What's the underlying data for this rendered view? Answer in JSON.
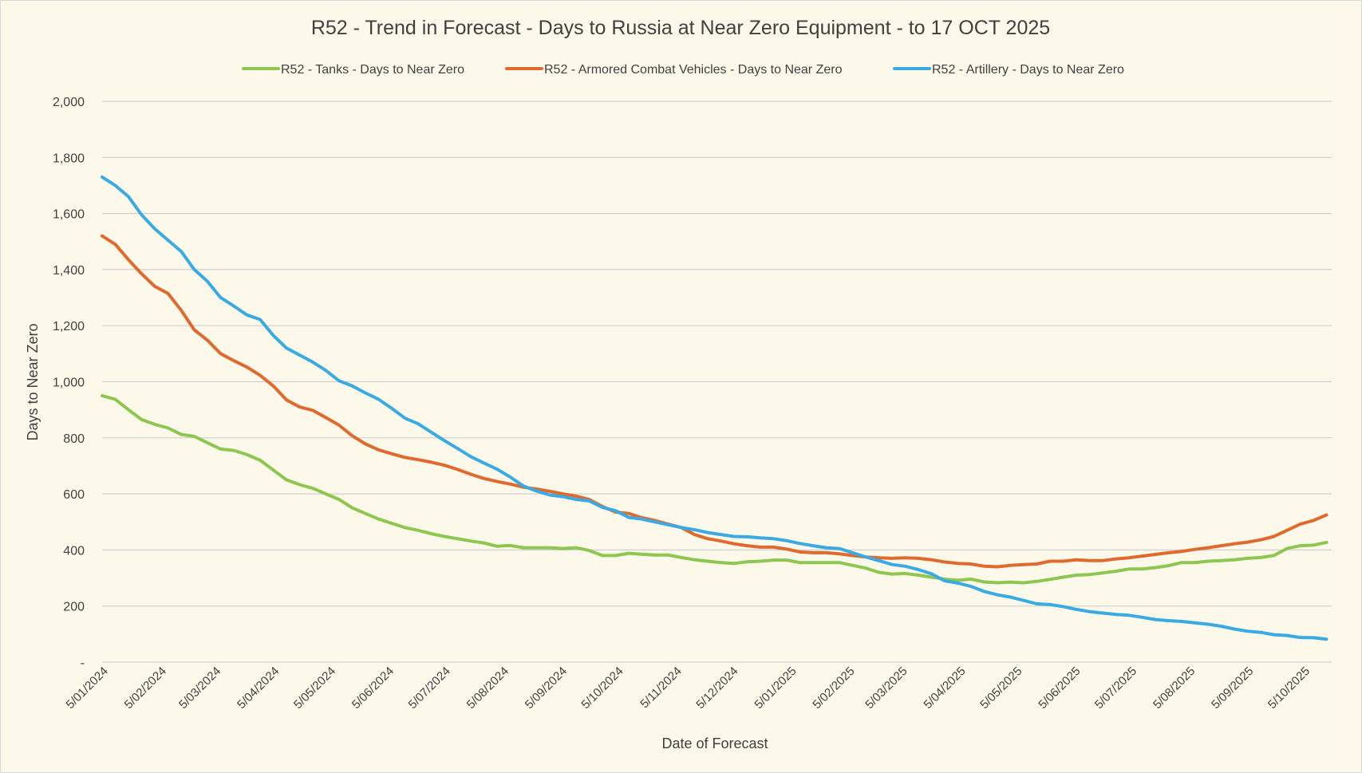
{
  "chart_data": {
    "type": "line",
    "title": "R52 - Trend in Forecast - Days to Russia at Near Zero Equipment - to 17 OCT 2025",
    "xlabel": "Date of Forecast",
    "ylabel": "Days to Near Zero",
    "ylim": [
      0,
      2000
    ],
    "yticks": [
      0,
      200,
      400,
      600,
      800,
      1000,
      1200,
      1400,
      1600,
      1800,
      2000
    ],
    "ytick_labels": [
      "-",
      "200",
      "400",
      "600",
      "800",
      "1,000",
      "1,200",
      "1,400",
      "1,600",
      "1,800",
      "2,000"
    ],
    "grid": true,
    "legend_position": "top",
    "x_tick_labels": [
      "5/01/2024",
      "5/02/2024",
      "5/03/2024",
      "5/04/2024",
      "5/05/2024",
      "5/06/2024",
      "5/07/2024",
      "5/08/2024",
      "5/09/2024",
      "5/10/2024",
      "5/11/2024",
      "5/12/2024",
      "5/01/2025",
      "5/02/2025",
      "5/03/2025",
      "5/04/2025",
      "5/05/2025",
      "5/06/2025",
      "5/07/2025",
      "5/08/2025",
      "5/09/2025",
      "5/10/2025"
    ],
    "x_tick_weeks": [
      0,
      4.43,
      8.57,
      13,
      17.29,
      21.71,
      26,
      30.43,
      34.86,
      39.14,
      43.57,
      47.86,
      52.29,
      56.71,
      60.71,
      65.14,
      69.43,
      73.86,
      78.14,
      82.57,
      87,
      91.29
    ],
    "x_range_weeks": [
      0,
      95
    ],
    "x_unit": "weeks since 5/01/2024",
    "series": [
      {
        "name": "R52 - Tanks - Days to Near Zero",
        "color": "#8dc74f",
        "values": [
          950,
          937,
          900,
          865,
          848,
          835,
          812,
          805,
          782,
          760,
          755,
          740,
          720,
          685,
          650,
          633,
          620,
          600,
          580,
          550,
          530,
          510,
          495,
          480,
          470,
          458,
          448,
          440,
          432,
          425,
          413,
          416,
          408,
          408,
          408,
          405,
          408,
          398,
          380,
          380,
          388,
          385,
          382,
          382,
          373,
          365,
          360,
          355,
          352,
          358,
          360,
          364,
          364,
          355,
          355,
          355,
          355,
          345,
          335,
          320,
          314,
          316,
          310,
          303,
          296,
          292,
          296,
          286,
          283,
          285,
          283,
          288,
          295,
          303,
          310,
          312,
          318,
          324,
          332,
          332,
          337,
          344,
          355,
          355,
          360,
          362,
          365,
          370,
          373,
          380,
          405,
          415,
          417,
          427
        ]
      },
      {
        "name": "R52 - Armored Combat Vehicles - Days to Near Zero",
        "color": "#e06a2e",
        "values": [
          1520,
          1490,
          1435,
          1385,
          1340,
          1315,
          1255,
          1185,
          1148,
          1100,
          1075,
          1052,
          1023,
          985,
          935,
          910,
          898,
          872,
          845,
          807,
          778,
          757,
          743,
          730,
          722,
          713,
          702,
          687,
          670,
          655,
          644,
          635,
          624,
          617,
          609,
          600,
          592,
          580,
          555,
          535,
          530,
          515,
          505,
          492,
          480,
          455,
          440,
          432,
          422,
          415,
          410,
          410,
          403,
          393,
          390,
          390,
          386,
          380,
          375,
          372,
          370,
          372,
          370,
          365,
          357,
          352,
          350,
          342,
          340,
          345,
          348,
          350,
          360,
          360,
          365,
          362,
          362,
          368,
          372,
          378,
          384,
          390,
          395,
          402,
          408,
          415,
          422,
          428,
          436,
          448,
          470,
          492,
          505,
          525
        ]
      },
      {
        "name": "R52 - Artillery - Days to Near Zero",
        "color": "#3aaae3",
        "values": [
          1730,
          1700,
          1660,
          1595,
          1545,
          1505,
          1465,
          1400,
          1358,
          1300,
          1270,
          1238,
          1222,
          1165,
          1120,
          1095,
          1070,
          1040,
          1003,
          985,
          960,
          937,
          905,
          870,
          850,
          820,
          790,
          762,
          733,
          710,
          688,
          660,
          628,
          610,
          596,
          590,
          580,
          575,
          552,
          540,
          516,
          510,
          500,
          490,
          480,
          472,
          462,
          455,
          448,
          447,
          443,
          440,
          433,
          423,
          415,
          408,
          405,
          390,
          375,
          362,
          348,
          342,
          330,
          315,
          290,
          282,
          270,
          252,
          240,
          232,
          220,
          208,
          205,
          198,
          188,
          180,
          175,
          170,
          167,
          160,
          152,
          148,
          145,
          140,
          135,
          128,
          118,
          110,
          106,
          98,
          95,
          88,
          87,
          82
        ]
      }
    ]
  }
}
